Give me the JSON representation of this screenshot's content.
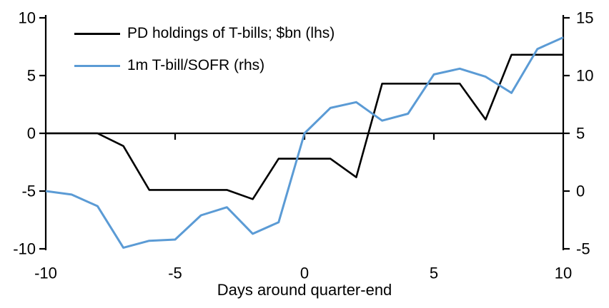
{
  "chart_data": {
    "type": "line",
    "title": "",
    "xlabel": "Days around quarter-end",
    "background": "#FFFFFF",
    "axis_color": "#000000",
    "grid": false,
    "legend_position": "top-left",
    "x": [
      -10,
      -9,
      -8,
      -7,
      -6,
      -5,
      -4,
      -3,
      -2,
      -1,
      0,
      1,
      2,
      3,
      4,
      5,
      6,
      7,
      8,
      9,
      10
    ],
    "series": [
      {
        "name": "PD holdings of T-bills; $bn (lhs)",
        "axis": "left",
        "color": "#000000",
        "values": [
          0,
          0,
          0,
          -1.1,
          -4.9,
          -4.9,
          -4.9,
          -4.9,
          -5.7,
          -2.2,
          -2.2,
          -2.2,
          -3.8,
          4.3,
          4.3,
          4.3,
          4.3,
          1.2,
          6.8,
          6.8,
          6.8
        ]
      },
      {
        "name": "1m T-bill/SOFR (rhs)",
        "axis": "right",
        "color": "#5B9BD5",
        "values": [
          0,
          -0.3,
          -1.3,
          -4.9,
          -4.3,
          -4.2,
          -2.1,
          -1.4,
          -3.7,
          -2.7,
          5.0,
          7.2,
          7.7,
          6.1,
          6.7,
          10.1,
          10.6,
          9.9,
          8.5,
          12.3,
          13.3
        ]
      }
    ],
    "left_axis": {
      "min": -10,
      "max": 10,
      "ticks": [
        10,
        5,
        0,
        -5,
        -10
      ]
    },
    "right_axis": {
      "min": -5,
      "max": 15,
      "ticks": [
        15,
        10,
        5,
        0,
        -5
      ]
    },
    "x_axis": {
      "min": -10,
      "max": 10,
      "ticks": [
        -10,
        -5,
        0,
        5,
        10
      ]
    }
  }
}
